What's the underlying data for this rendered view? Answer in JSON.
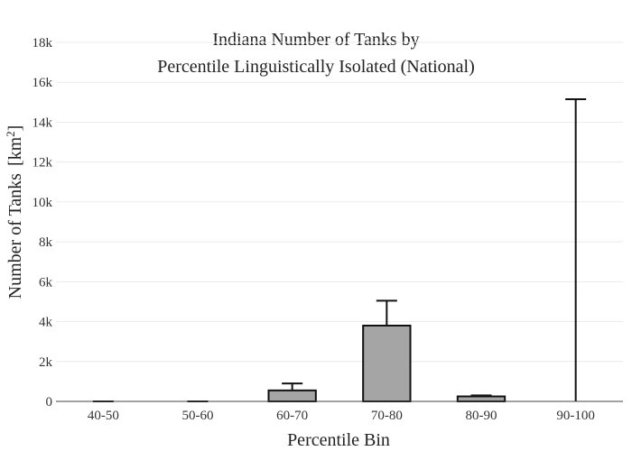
{
  "chart_data": {
    "type": "bar",
    "title_lines": [
      "Indiana Number of Tanks by",
      "Percentile Linguistically Isolated (National)"
    ],
    "xlabel": "Percentile Bin",
    "ylabel": "Number of Tanks",
    "ylabel_unit": "[km",
    "ylabel_unit_sup": "2",
    "ylabel_unit_close": "]",
    "categories": [
      "40-50",
      "50-60",
      "60-70",
      "70-80",
      "80-90",
      "90-100"
    ],
    "values": [
      0,
      0,
      550,
      3800,
      250,
      0
    ],
    "error_upper": [
      0,
      0,
      900,
      5050,
      300,
      15150
    ],
    "ylim": [
      0,
      18000
    ],
    "yticks": [
      0,
      2000,
      4000,
      6000,
      8000,
      10000,
      12000,
      14000,
      16000,
      18000
    ],
    "ytick_labels": [
      "0",
      "2k",
      "4k",
      "6k",
      "8k",
      "10k",
      "12k",
      "14k",
      "16k",
      "18k"
    ],
    "grid": true,
    "colors": {
      "bar": "#a5a5a5",
      "edge": "#111111"
    }
  }
}
